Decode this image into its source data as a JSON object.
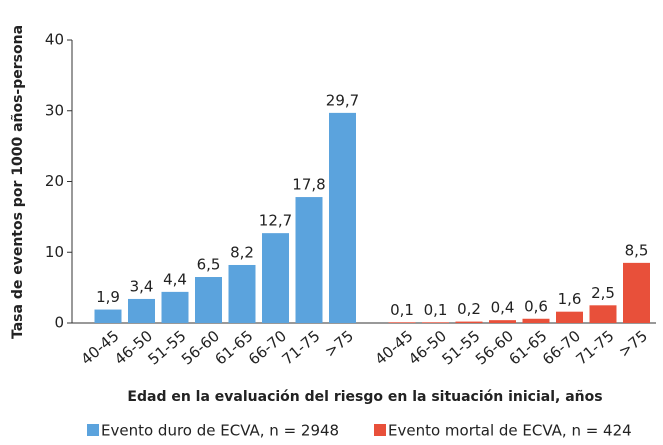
{
  "chart_data": {
    "type": "bar",
    "y_label": "Tasa de eventos por 1000 años-persona",
    "x_label": "Edad en la evaluación del riesgo en la situación inicial, años",
    "categories": [
      "40-45",
      "46-50",
      "51-55",
      "56-60",
      "61-65",
      "66-70",
      "71-75",
      ">75",
      "40-45",
      "46-50",
      "51-55",
      "56-60",
      "61-65",
      "66-70",
      "71-75",
      ">75"
    ],
    "series": [
      {
        "name": "Evento duro de ECVA, n = 2948",
        "color": "#5ba3dd",
        "values": [
          1.9,
          3.4,
          4.4,
          6.5,
          8.2,
          12.7,
          17.8,
          29.7,
          null,
          null,
          null,
          null,
          null,
          null,
          null,
          null
        ],
        "value_labels": [
          "1,9",
          "3,4",
          "4,4",
          "6,5",
          "8,2",
          "12,7",
          "17,8",
          "29,7",
          null,
          null,
          null,
          null,
          null,
          null,
          null,
          null
        ]
      },
      {
        "name": "Evento mortal de ECVA, n = 424",
        "color": "#e8503a",
        "values": [
          null,
          null,
          null,
          null,
          null,
          null,
          null,
          null,
          0.1,
          0.1,
          0.2,
          0.4,
          0.6,
          1.6,
          2.5,
          8.5
        ],
        "value_labels": [
          null,
          null,
          null,
          null,
          null,
          null,
          null,
          null,
          "0,1",
          "0,1",
          "0,2",
          "0,4",
          "0,6",
          "1,6",
          "2,5",
          "8,5"
        ]
      }
    ],
    "ylim": [
      0,
      40
    ],
    "yticks": [
      0,
      10,
      20,
      30,
      40
    ],
    "grid": false,
    "legend": "bottom"
  }
}
